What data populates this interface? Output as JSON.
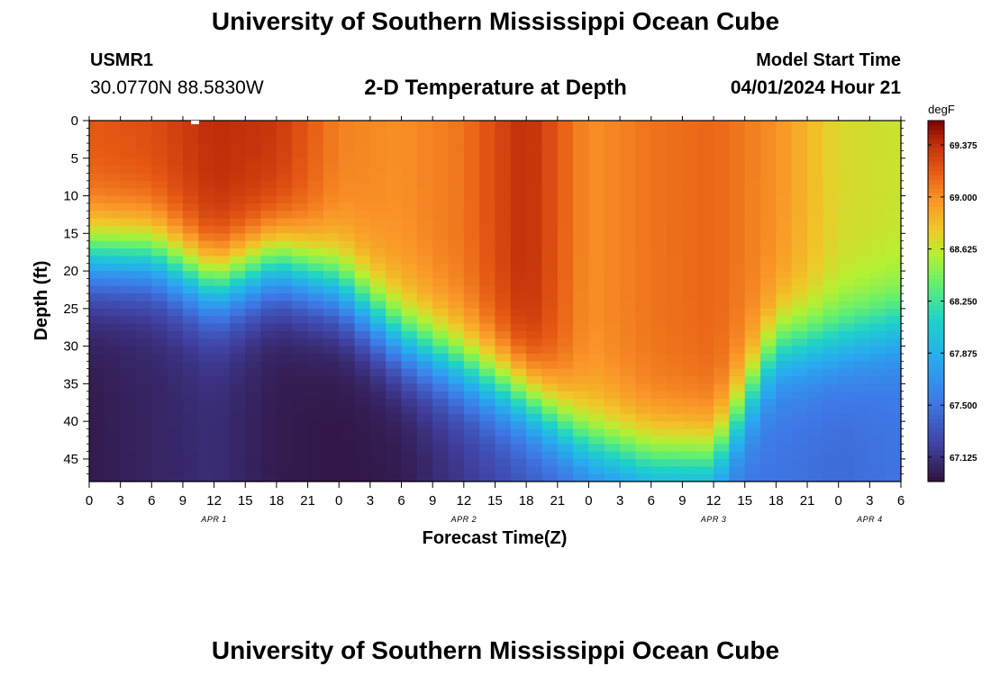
{
  "header": {
    "title": "University of Southern Mississippi Ocean Cube",
    "station_id": "USMR1",
    "station_coords": "30.0770N  88.5830W",
    "subtitle": "2-D Temperature at Depth",
    "model_start_label": "Model Start Time",
    "model_start_value": "04/01/2024 Hour 21"
  },
  "footer": {
    "title": "University of Southern Mississippi Ocean Cube"
  },
  "chart_data": {
    "type": "heatmap",
    "title": "2-D Temperature at Depth",
    "xlabel": "Forecast Time(Z)",
    "ylabel": "Depth (ft)",
    "x_range_hours": [
      0,
      78
    ],
    "x_ticks_hours": [
      0,
      3,
      6,
      9,
      12,
      15,
      18,
      21,
      24,
      27,
      30,
      33,
      36,
      39,
      42,
      45,
      48,
      51,
      54,
      57,
      60,
      63,
      66,
      69,
      72,
      75,
      78
    ],
    "x_tick_labels": [
      "0",
      "3",
      "6",
      "9",
      "12",
      "15",
      "18",
      "21",
      "0",
      "3",
      "6",
      "9",
      "12",
      "15",
      "18",
      "21",
      "0",
      "3",
      "6",
      "9",
      "12",
      "15",
      "18",
      "21",
      "0",
      "3",
      "6"
    ],
    "date_labels": [
      {
        "hour": 12,
        "text": "APR 1"
      },
      {
        "hour": 36,
        "text": "APR 2"
      },
      {
        "hour": 60,
        "text": "APR 3"
      },
      {
        "hour": 75,
        "text": "APR 4"
      }
    ],
    "ylim": [
      0,
      48
    ],
    "y_ticks": [
      0,
      5,
      10,
      15,
      20,
      25,
      30,
      35,
      40,
      45
    ],
    "colorbar": {
      "unit": "degF",
      "range": [
        66.95,
        69.55
      ],
      "ticks": [
        67.125,
        67.5,
        67.875,
        68.25,
        68.625,
        69.0,
        69.375
      ],
      "tick_labels": [
        "67.125",
        "67.500",
        "67.875",
        "68.250",
        "68.625",
        "69.000",
        "69.375"
      ]
    },
    "thermocline_depth_ft": {
      "hours": [
        0,
        6,
        12,
        18,
        24,
        30,
        36,
        42,
        48,
        54,
        60,
        66,
        72,
        78
      ],
      "values": [
        18,
        18,
        22,
        19,
        22,
        29,
        33,
        37,
        43,
        45,
        45,
        30,
        29,
        27
      ]
    },
    "surface_temp_degF": {
      "hours": [
        0,
        6,
        12,
        18,
        24,
        30,
        36,
        42,
        48,
        54,
        60,
        66,
        72,
        78
      ],
      "values": [
        69.2,
        69.25,
        69.4,
        69.35,
        69.05,
        69.0,
        69.1,
        69.4,
        69.0,
        69.1,
        69.15,
        69.0,
        68.7,
        68.65
      ]
    },
    "deep_temp_degF": {
      "hours": [
        0,
        6,
        12,
        18,
        24,
        30,
        36,
        42,
        48,
        54,
        60,
        66,
        72,
        78
      ],
      "values": [
        67.0,
        67.05,
        67.1,
        67.0,
        66.98,
        67.0,
        67.15,
        67.3,
        67.4,
        67.5,
        67.5,
        67.5,
        67.45,
        67.5
      ]
    }
  }
}
